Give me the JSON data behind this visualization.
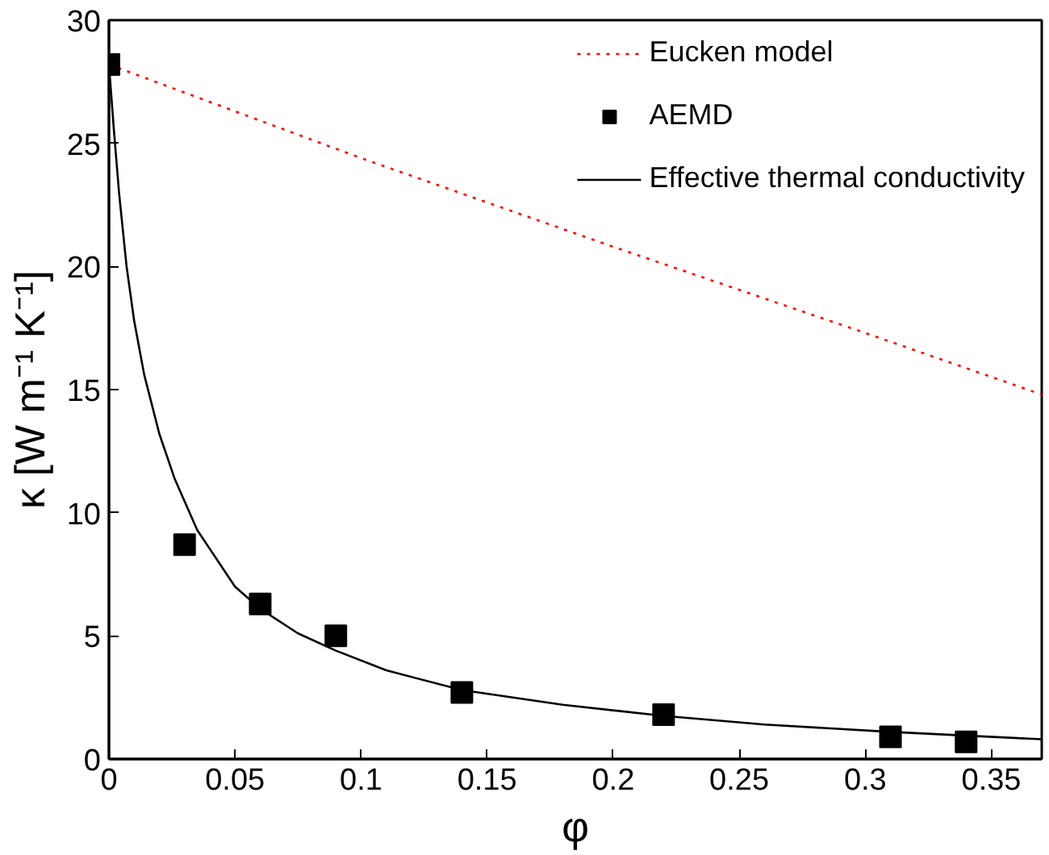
{
  "chart_data": {
    "type": "line",
    "xlabel": "φ",
    "ylabel": "κ [W m⁻¹ K⁻¹]",
    "xlim": [
      0,
      0.37
    ],
    "ylim": [
      0,
      30
    ],
    "xticks": [
      0,
      0.05,
      0.1,
      0.15,
      0.2,
      0.25,
      0.3,
      0.35
    ],
    "yticks": [
      0,
      5,
      10,
      15,
      20,
      25,
      30
    ],
    "grid": false,
    "legend": "top right",
    "series": [
      {
        "name": "Eucken model",
        "color": "#ff0000",
        "line_style": "dotted",
        "marker": "none",
        "x": [
          0,
          0.1,
          0.2,
          0.3,
          0.37
        ],
        "values": [
          28.2,
          24.4,
          20.8,
          17.3,
          14.8
        ]
      },
      {
        "name": "AEMD",
        "type": "scatter",
        "color": "#000000",
        "marker": "square",
        "x": [
          0,
          0.03,
          0.06,
          0.09,
          0.14,
          0.22,
          0.31,
          0.34
        ],
        "values": [
          28.2,
          8.7,
          6.3,
          5.0,
          2.7,
          1.8,
          0.9,
          0.7
        ]
      },
      {
        "name": "Effective thermal conductivity",
        "color": "#000000",
        "line_style": "solid",
        "marker": "none",
        "x": [
          0,
          0.002,
          0.004,
          0.007,
          0.01,
          0.014,
          0.02,
          0.026,
          0.035,
          0.05,
          0.06,
          0.075,
          0.09,
          0.11,
          0.14,
          0.18,
          0.22,
          0.26,
          0.31,
          0.37
        ],
        "values": [
          28.2,
          25.5,
          23,
          20,
          17.8,
          15.6,
          13.2,
          11.4,
          9.3,
          7.0,
          6.1,
          5.1,
          4.4,
          3.6,
          2.8,
          2.2,
          1.75,
          1.4,
          1.1,
          0.8
        ]
      }
    ]
  }
}
